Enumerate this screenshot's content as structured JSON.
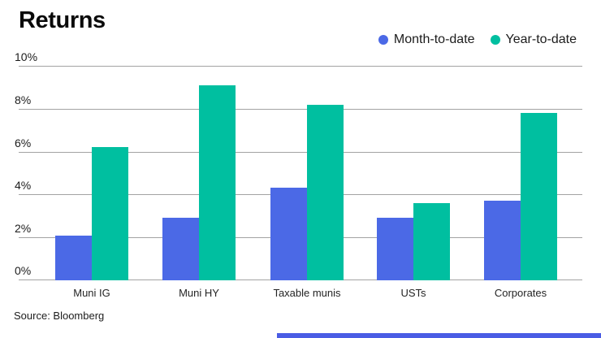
{
  "header": {
    "title": "Returns"
  },
  "legend": [
    {
      "label": "Month-to-date",
      "color": "#4b69e6"
    },
    {
      "label": "Year-to-date",
      "color": "#00bfa0"
    }
  ],
  "source_note": "Source: Bloomberg",
  "colors": {
    "month_to_date": "#4b69e6",
    "year_to_date": "#00bfa0",
    "gridline": "#a3a3a3",
    "bottom_accent": "#4a5ce4",
    "text": "#1c1c1c"
  },
  "chart_data": {
    "type": "bar",
    "title": "Returns",
    "categories": [
      "Muni IG",
      "Muni HY",
      "Taxable munis",
      "USTs",
      "Corporates"
    ],
    "series": [
      {
        "name": "Month-to-date",
        "color": "#4b69e6",
        "values": [
          2.1,
          2.9,
          4.3,
          2.9,
          3.7
        ]
      },
      {
        "name": "Year-to-date",
        "color": "#00bfa0",
        "values": [
          6.2,
          9.1,
          8.2,
          3.6,
          7.8
        ]
      }
    ],
    "xlabel": "",
    "ylabel": "",
    "ylim": [
      0,
      10
    ],
    "ytick_values": [
      0,
      2,
      4,
      6,
      8,
      10
    ],
    "yticks": [
      "0%",
      "2%",
      "4%",
      "6%",
      "8%",
      "10%"
    ],
    "grid": true,
    "legend_position": "top-right"
  }
}
